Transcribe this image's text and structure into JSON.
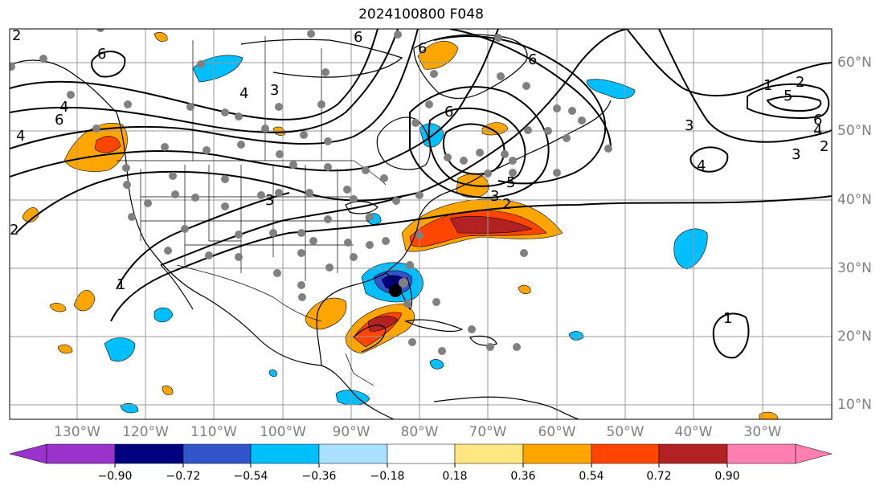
{
  "title": "2024100800 F048",
  "map": {
    "lon_labels": [
      "130°W",
      "120°W",
      "110°W",
      "100°W",
      "90°W",
      "80°W",
      "70°W",
      "60°W",
      "50°W",
      "40°W",
      "30°W"
    ],
    "lat_labels": [
      "60°N",
      "50°N",
      "40°N",
      "30°N",
      "20°N",
      "10°N"
    ],
    "contour_labels": [
      "6",
      "4",
      "6",
      "4",
      "3",
      "4",
      "3",
      "6",
      "1",
      "6",
      "6",
      "5",
      "3",
      "2",
      "3",
      "2",
      "1",
      "2",
      "6",
      "4",
      "3",
      "2",
      "6",
      "4",
      "1",
      "2",
      "5"
    ],
    "gridlines": true
  },
  "colorbar": {
    "ticks": [
      "−0.90",
      "−0.72",
      "−0.54",
      "−0.36",
      "−0.18",
      "0.18",
      "0.36",
      "0.54",
      "0.72",
      "0.90"
    ],
    "colors": [
      "#9933cc",
      "#000080",
      "#3355cc",
      "#00bfff",
      "#aadfff",
      "#ffffff",
      "#ffe680",
      "#ffa500",
      "#ff4500",
      "#b22222",
      "#ff80b0"
    ],
    "extend": "both"
  }
}
